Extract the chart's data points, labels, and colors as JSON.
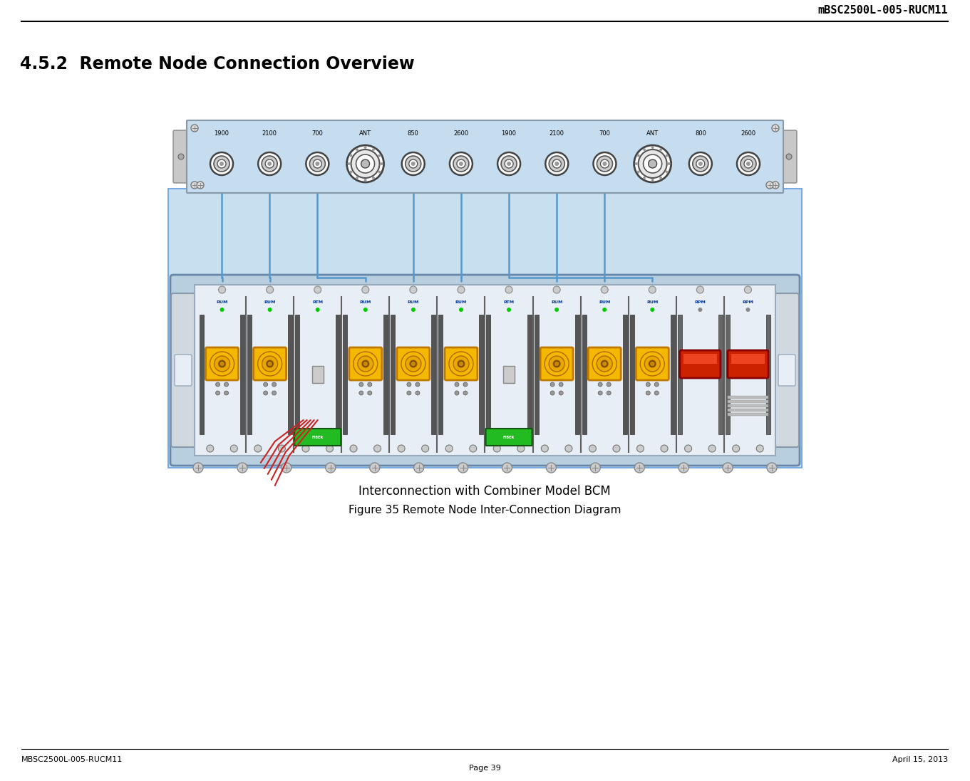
{
  "header_text": "mBSC2500L-005-RUCM11",
  "section_title": "4.5.2  Remote Node Connection Overview",
  "caption1": "Interconnection with Combiner Model BCM",
  "caption2": "Figure 35 Remote Node Inter-Connection Diagram",
  "footer_left": "MBSC2500L-005-RUCM11",
  "footer_center": "Page 39",
  "footer_right": "April 15, 2013",
  "bg_color": "#ffffff",
  "fig_width": 13.61,
  "fig_height": 10.97,
  "combiner_labels": [
    "1900",
    "2100",
    "700",
    "ANT",
    "850",
    "2600",
    "1900",
    "2100",
    "700",
    "ANT",
    "800",
    "2600"
  ],
  "module_labels": [
    "RUM",
    "RUM",
    "RTM",
    "RUM",
    "RUM",
    "RUM",
    "RTM",
    "RUM",
    "RUM",
    "RUM",
    "RPM",
    "RPM"
  ],
  "light_blue": "#c8dff0",
  "combiner_bg": "#c5ddef",
  "chassis_outer": "#b8cfe0",
  "chassis_inner": "#e8eef5",
  "module_yellow": "#f5b800",
  "line_color": "#5599cc"
}
